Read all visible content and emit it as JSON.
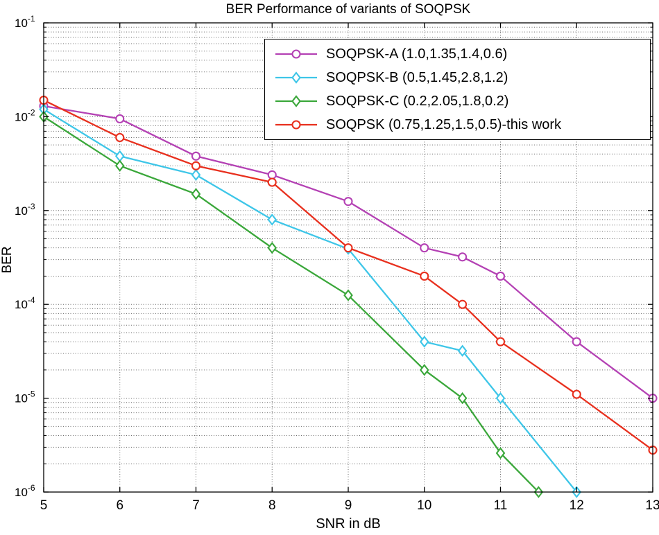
{
  "chart_data": {
    "type": "line",
    "title": "BER Performance of variants of SOQPSK",
    "xlabel": "SNR in dB",
    "ylabel": "BER",
    "xlim": [
      5,
      13
    ],
    "ylim": [
      1e-06,
      0.1
    ],
    "ylim_exponents": [
      -6,
      -1
    ],
    "x_ticks": [
      5,
      6,
      7,
      8,
      9,
      10,
      11,
      12,
      13
    ],
    "y_tick_exponents": [
      -1,
      -2,
      -3,
      -4,
      -5,
      -6
    ],
    "y_scale": "log",
    "grid": {
      "x": true,
      "y_major": true,
      "y_minor": true,
      "style": "dotted"
    },
    "legend_position": "top-right-inside",
    "series": [
      {
        "name": "SOQPSK-A (1.0,1.35,1.4,0.6)",
        "color": "#b441b4",
        "marker": "circle",
        "x": [
          5,
          6,
          7,
          8,
          9,
          10,
          10.5,
          11,
          12,
          13
        ],
        "y": [
          0.013,
          0.0095,
          0.0038,
          0.0024,
          0.00125,
          0.0004,
          0.00032,
          0.0002,
          4e-05,
          1e-05
        ]
      },
      {
        "name": "SOQPSK-B (0.5,1.45,2.8,1.2)",
        "color": "#3ec6e8",
        "marker": "diamond",
        "x": [
          5,
          6,
          7,
          8,
          9,
          10,
          10.5,
          11,
          12
        ],
        "y": [
          0.012,
          0.0038,
          0.0024,
          0.0008,
          0.00039,
          4e-05,
          3.2e-05,
          1e-05,
          1e-06
        ]
      },
      {
        "name": "SOQPSK-C (0.2,2.05,1.8,0.2)",
        "color": "#3aa73a",
        "marker": "diamond",
        "x": [
          5,
          6,
          7,
          8,
          9,
          10,
          10.5,
          11,
          11.5
        ],
        "y": [
          0.01,
          0.003,
          0.0015,
          0.0004,
          0.000125,
          2e-05,
          1e-05,
          2.6e-06,
          1e-06
        ]
      },
      {
        "name": "SOQPSK (0.75,1.25,1.5,0.5)-this work",
        "color": "#e8301e",
        "marker": "circle",
        "x": [
          5,
          6,
          7,
          8,
          9,
          10,
          10.5,
          11,
          12,
          13
        ],
        "y": [
          0.015,
          0.006,
          0.003,
          0.002,
          0.0004,
          0.0002,
          0.0001,
          4e-05,
          1.1e-05,
          2.8e-06
        ]
      }
    ]
  }
}
